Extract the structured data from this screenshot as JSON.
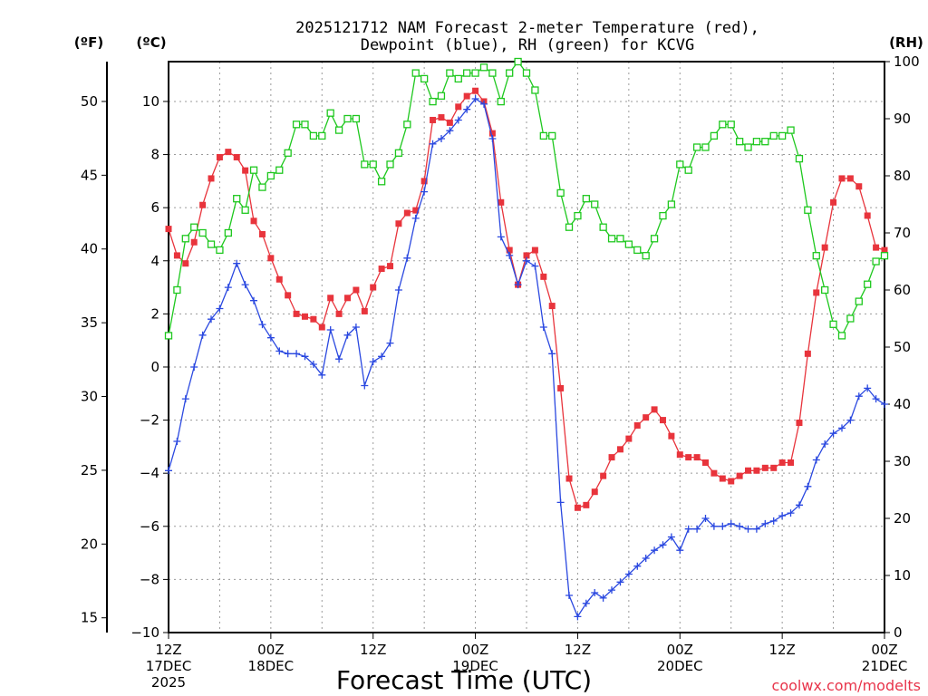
{
  "chart_data": {
    "type": "line",
    "title_line1": "2025121712 NAM Forecast 2-meter Temperature (red),",
    "title_line2": "Dewpoint (blue), RH (green) for KCVG",
    "xlabel": "Forecast Time (UTC)",
    "credit": "coolwx.com/modelts",
    "units": {
      "fahrenheit": "(ºF)",
      "celsius": "(ºC)",
      "rh": "(RH)"
    },
    "x_ticks": [
      {
        "hour": 0,
        "line1": "12Z",
        "line2": "17DEC",
        "line3": "2025"
      },
      {
        "hour": 12,
        "line1": "00Z",
        "line2": "18DEC",
        "line3": ""
      },
      {
        "hour": 24,
        "line1": "12Z",
        "line2": "",
        "line3": ""
      },
      {
        "hour": 36,
        "line1": "00Z",
        "line2": "19DEC",
        "line3": ""
      },
      {
        "hour": 48,
        "line1": "12Z",
        "line2": "",
        "line3": ""
      },
      {
        "hour": 60,
        "line1": "00Z",
        "line2": "20DEC",
        "line3": ""
      },
      {
        "hour": 72,
        "line1": "12Z",
        "line2": "",
        "line3": ""
      },
      {
        "hour": 84,
        "line1": "00Z",
        "line2": "21DEC",
        "line3": ""
      }
    ],
    "x_range_hours": [
      0,
      84
    ],
    "celsius_range": [
      -10,
      11.5
    ],
    "rh_range": [
      0,
      100
    ],
    "celsius_ticks": [
      "−10",
      "−8",
      "−6",
      "−4",
      "−2",
      "0",
      "2",
      "4",
      "6",
      "8",
      "10"
    ],
    "fahrenheit_ticks": [
      "15",
      "20",
      "25",
      "30",
      "35",
      "40",
      "45",
      "50"
    ],
    "rh_ticks": [
      "0",
      "10",
      "20",
      "30",
      "40",
      "50",
      "60",
      "70",
      "80",
      "90",
      "100"
    ],
    "series": [
      {
        "name": "Temperature",
        "color": "#e8343c",
        "marker": "filled-square",
        "unit": "C",
        "values": [
          5.2,
          4.2,
          3.9,
          4.7,
          6.1,
          7.1,
          7.9,
          8.1,
          7.9,
          7.4,
          5.5,
          5.0,
          4.1,
          3.3,
          2.7,
          2.0,
          1.9,
          1.8,
          1.5,
          2.6,
          2.0,
          2.6,
          2.9,
          2.1,
          3.0,
          3.7,
          3.8,
          5.4,
          5.8,
          5.9,
          7.0,
          9.3,
          9.4,
          9.2,
          9.8,
          10.2,
          10.4,
          10.0,
          8.8,
          6.2,
          4.4,
          3.1,
          4.2,
          4.4,
          3.4,
          2.3,
          -0.8,
          -4.2,
          -5.3,
          -5.2,
          -4.7,
          -4.1,
          -3.4,
          -3.1,
          -2.7,
          -2.2,
          -1.9,
          -1.6,
          -2.0,
          -2.6,
          -3.3,
          -3.4,
          -3.4,
          -3.6,
          -4.0,
          -4.2,
          -4.3,
          -4.1,
          -3.9,
          -3.9,
          -3.8,
          -3.8,
          -3.6,
          -3.6,
          -2.1,
          0.5,
          2.8,
          4.5,
          6.2,
          7.1,
          7.1,
          6.8,
          5.7,
          4.5,
          4.4
        ]
      },
      {
        "name": "Dewpoint",
        "color": "#2a48e0",
        "marker": "plus",
        "unit": "C",
        "values": [
          -3.9,
          -2.8,
          -1.2,
          0.0,
          1.2,
          1.8,
          2.2,
          3.0,
          3.9,
          3.1,
          2.5,
          1.6,
          1.1,
          0.6,
          0.5,
          0.5,
          0.4,
          0.1,
          -0.3,
          1.4,
          0.3,
          1.2,
          1.5,
          -0.7,
          0.2,
          0.4,
          0.9,
          2.9,
          4.1,
          5.6,
          6.6,
          8.4,
          8.6,
          8.9,
          9.3,
          9.7,
          10.1,
          9.9,
          8.6,
          4.9,
          4.2,
          3.1,
          4.0,
          3.8,
          1.5,
          0.5,
          -5.1,
          -8.6,
          -9.4,
          -8.9,
          -8.5,
          -8.7,
          -8.4,
          -8.1,
          -7.8,
          -7.5,
          -7.2,
          -6.9,
          -6.7,
          -6.4,
          -6.9,
          -6.1,
          -6.1,
          -5.7,
          -6.0,
          -6.0,
          -5.9,
          -6.0,
          -6.1,
          -6.1,
          -5.9,
          -5.8,
          -5.6,
          -5.5,
          -5.2,
          -4.5,
          -3.5,
          -2.9,
          -2.5,
          -2.3,
          -2.0,
          -1.1,
          -0.8,
          -1.2,
          -1.4
        ]
      },
      {
        "name": "RH",
        "color": "#1ec81e",
        "marker": "open-square",
        "unit": "RH",
        "values": [
          52,
          60,
          69,
          71,
          70,
          68,
          67,
          70,
          76,
          74,
          81,
          78,
          80,
          81,
          84,
          89,
          89,
          87,
          87,
          91,
          88,
          90,
          90,
          82,
          82,
          79,
          82,
          84,
          89,
          98,
          97,
          93,
          94,
          98,
          97,
          98,
          98,
          99,
          98,
          93,
          98,
          100,
          98,
          95,
          87,
          87,
          77,
          71,
          73,
          76,
          75,
          71,
          69,
          69,
          68,
          67,
          66,
          69,
          73,
          75,
          82,
          81,
          85,
          85,
          87,
          89,
          89,
          86,
          85,
          86,
          86,
          87,
          87,
          88,
          83,
          74,
          66,
          60,
          54,
          52,
          55,
          58,
          61,
          65,
          66
        ]
      }
    ]
  }
}
